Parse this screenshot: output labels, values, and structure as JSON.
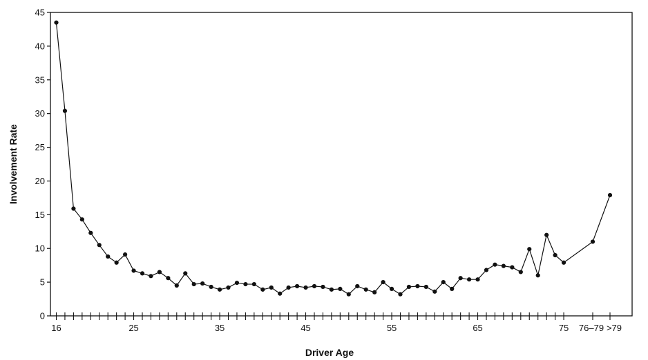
{
  "chart_data": {
    "type": "line",
    "title": "",
    "xlabel": "Driver Age",
    "ylabel": "Involvement Rate",
    "ylim": [
      0,
      45
    ],
    "yticks": [
      0,
      5,
      10,
      15,
      20,
      25,
      30,
      35,
      40,
      45
    ],
    "x_tick_labels": [
      "16",
      "25",
      "35",
      "45",
      "55",
      "65",
      "75",
      "76–79",
      ">79"
    ],
    "grid": false,
    "legend": "none",
    "markers": "filled-circle",
    "line_color": "#111111",
    "series": [
      {
        "x": [
          "16",
          "17",
          "18",
          "19",
          "20",
          "21",
          "22",
          "23",
          "24",
          "25",
          "26",
          "27",
          "28",
          "29",
          "30",
          "31",
          "32",
          "33",
          "34",
          "35",
          "36",
          "37",
          "38",
          "39",
          "40",
          "41",
          "42",
          "43",
          "44",
          "45",
          "46",
          "47",
          "48",
          "49",
          "50",
          "51",
          "52",
          "53",
          "54",
          "55",
          "56",
          "57",
          "58",
          "59",
          "60",
          "61",
          "62",
          "63",
          "64",
          "65",
          "66",
          "67",
          "68",
          "69",
          "70",
          "71",
          "72",
          "73",
          "74",
          "75",
          "76–79",
          ">79"
        ],
        "values": [
          43.5,
          30.4,
          15.9,
          14.3,
          12.3,
          10.5,
          8.8,
          7.9,
          9.1,
          6.7,
          6.3,
          5.9,
          6.5,
          5.6,
          4.5,
          6.3,
          4.7,
          4.8,
          4.3,
          3.9,
          4.2,
          4.9,
          4.7,
          4.7,
          3.9,
          4.2,
          3.3,
          4.2,
          4.4,
          4.2,
          4.4,
          4.3,
          3.9,
          4.0,
          3.2,
          4.4,
          3.9,
          3.5,
          5.0,
          4.0,
          3.2,
          4.3,
          4.4,
          4.3,
          3.6,
          5.0,
          4.0,
          5.6,
          5.4,
          5.4,
          6.8,
          7.6,
          7.4,
          7.2,
          6.5,
          9.9,
          6.0,
          12.0,
          9.0,
          7.9,
          11.0,
          17.9
        ]
      }
    ]
  }
}
